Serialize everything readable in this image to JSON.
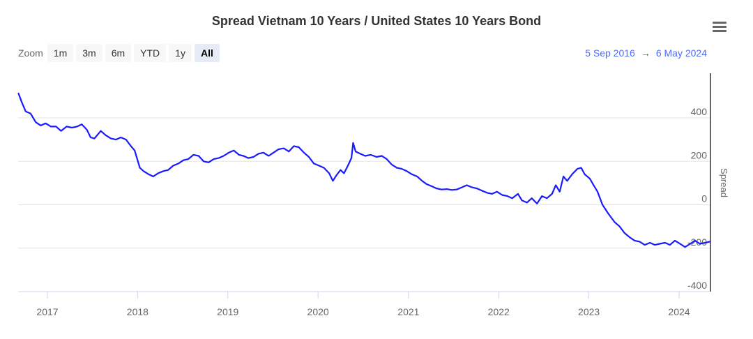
{
  "header": {
    "title": "Spread Vietnam 10 Years / United States 10 Years Bond",
    "menu_icon": "hamburger-menu-icon"
  },
  "zoom": {
    "label": "Zoom",
    "buttons": [
      "1m",
      "3m",
      "6m",
      "YTD",
      "1y",
      "All"
    ],
    "selected": "All"
  },
  "range": {
    "from": "5 Sep 2016",
    "arrow": "→",
    "to": "6 May 2024"
  },
  "colors": {
    "line": "#1a1aff",
    "range_text": "#4d6bfe",
    "accent": "#e6ebf5"
  },
  "chart_data": {
    "type": "line",
    "title": "Spread Vietnam 10 Years / United States 10 Years Bond",
    "xlabel": "",
    "ylabel": "Spread",
    "ylim": [
      -400,
      500
    ],
    "yticks": [
      400,
      200,
      0,
      -200,
      -400
    ],
    "xticks": [
      "2017",
      "2018",
      "2019",
      "2020",
      "2021",
      "2022",
      "2023",
      "2024"
    ],
    "grid": true,
    "series": [
      {
        "values": [
          [
            "2016-09-05",
            515
          ],
          [
            "2016-09-20",
            470
          ],
          [
            "2016-10-05",
            430
          ],
          [
            "2016-10-25",
            420
          ],
          [
            "2016-11-15",
            380
          ],
          [
            "2016-12-05",
            365
          ],
          [
            "2016-12-25",
            375
          ],
          [
            "2017-01-15",
            360
          ],
          [
            "2017-02-05",
            360
          ],
          [
            "2017-02-25",
            340
          ],
          [
            "2017-03-20",
            360
          ],
          [
            "2017-04-10",
            355
          ],
          [
            "2017-05-01",
            360
          ],
          [
            "2017-05-20",
            370
          ],
          [
            "2017-06-10",
            345
          ],
          [
            "2017-06-25",
            310
          ],
          [
            "2017-07-10",
            305
          ],
          [
            "2017-08-05",
            340
          ],
          [
            "2017-08-25",
            320
          ],
          [
            "2017-09-15",
            305
          ],
          [
            "2017-10-05",
            300
          ],
          [
            "2017-10-25",
            310
          ],
          [
            "2017-11-15",
            300
          ],
          [
            "2017-12-05",
            270
          ],
          [
            "2017-12-20",
            250
          ],
          [
            "2018-01-10",
            170
          ],
          [
            "2018-01-25",
            155
          ],
          [
            "2018-02-15",
            140
          ],
          [
            "2018-03-05",
            130
          ],
          [
            "2018-03-25",
            145
          ],
          [
            "2018-04-15",
            155
          ],
          [
            "2018-05-05",
            160
          ],
          [
            "2018-05-25",
            180
          ],
          [
            "2018-06-15",
            190
          ],
          [
            "2018-07-05",
            205
          ],
          [
            "2018-07-25",
            210
          ],
          [
            "2018-08-15",
            230
          ],
          [
            "2018-09-05",
            225
          ],
          [
            "2018-09-25",
            200
          ],
          [
            "2018-10-15",
            195
          ],
          [
            "2018-11-05",
            210
          ],
          [
            "2018-11-25",
            215
          ],
          [
            "2018-12-15",
            225
          ],
          [
            "2019-01-05",
            240
          ],
          [
            "2019-01-25",
            250
          ],
          [
            "2019-02-15",
            230
          ],
          [
            "2019-03-05",
            225
          ],
          [
            "2019-03-25",
            215
          ],
          [
            "2019-04-15",
            220
          ],
          [
            "2019-05-05",
            235
          ],
          [
            "2019-05-25",
            240
          ],
          [
            "2019-06-15",
            225
          ],
          [
            "2019-07-05",
            240
          ],
          [
            "2019-07-25",
            255
          ],
          [
            "2019-08-15",
            260
          ],
          [
            "2019-09-05",
            245
          ],
          [
            "2019-09-25",
            270
          ],
          [
            "2019-10-15",
            265
          ],
          [
            "2019-11-05",
            240
          ],
          [
            "2019-11-25",
            220
          ],
          [
            "2019-12-15",
            190
          ],
          [
            "2020-01-05",
            180
          ],
          [
            "2020-01-25",
            170
          ],
          [
            "2020-02-15",
            145
          ],
          [
            "2020-03-01",
            110
          ],
          [
            "2020-03-15",
            135
          ],
          [
            "2020-04-01",
            160
          ],
          [
            "2020-04-15",
            145
          ],
          [
            "2020-05-01",
            180
          ],
          [
            "2020-05-15",
            215
          ],
          [
            "2020-05-22",
            285
          ],
          [
            "2020-06-01",
            245
          ],
          [
            "2020-06-20",
            235
          ],
          [
            "2020-07-10",
            225
          ],
          [
            "2020-08-01",
            230
          ],
          [
            "2020-08-25",
            220
          ],
          [
            "2020-09-15",
            225
          ],
          [
            "2020-10-05",
            210
          ],
          [
            "2020-10-25",
            185
          ],
          [
            "2020-11-15",
            170
          ],
          [
            "2020-12-05",
            165
          ],
          [
            "2020-12-25",
            155
          ],
          [
            "2021-01-15",
            140
          ],
          [
            "2021-02-05",
            130
          ],
          [
            "2021-02-25",
            110
          ],
          [
            "2021-03-15",
            95
          ],
          [
            "2021-04-05",
            85
          ],
          [
            "2021-04-25",
            75
          ],
          [
            "2021-05-15",
            70
          ],
          [
            "2021-06-05",
            72
          ],
          [
            "2021-06-25",
            68
          ],
          [
            "2021-07-15",
            70
          ],
          [
            "2021-08-05",
            80
          ],
          [
            "2021-08-25",
            90
          ],
          [
            "2021-09-15",
            80
          ],
          [
            "2021-10-05",
            75
          ],
          [
            "2021-10-25",
            65
          ],
          [
            "2021-11-15",
            55
          ],
          [
            "2021-12-05",
            50
          ],
          [
            "2021-12-25",
            60
          ],
          [
            "2022-01-15",
            45
          ],
          [
            "2022-02-05",
            40
          ],
          [
            "2022-02-25",
            30
          ],
          [
            "2022-03-20",
            50
          ],
          [
            "2022-04-05",
            20
          ],
          [
            "2022-04-25",
            10
          ],
          [
            "2022-05-15",
            30
          ],
          [
            "2022-06-05",
            5
          ],
          [
            "2022-06-25",
            40
          ],
          [
            "2022-07-15",
            30
          ],
          [
            "2022-08-05",
            50
          ],
          [
            "2022-08-20",
            90
          ],
          [
            "2022-09-05",
            60
          ],
          [
            "2022-09-20",
            130
          ],
          [
            "2022-10-05",
            110
          ],
          [
            "2022-10-25",
            140
          ],
          [
            "2022-11-15",
            165
          ],
          [
            "2022-12-01",
            170
          ],
          [
            "2022-12-15",
            140
          ],
          [
            "2023-01-05",
            120
          ],
          [
            "2023-01-20",
            90
          ],
          [
            "2023-02-05",
            60
          ],
          [
            "2023-02-25",
            0
          ],
          [
            "2023-03-20",
            -40
          ],
          [
            "2023-04-15",
            -80
          ],
          [
            "2023-05-05",
            -100
          ],
          [
            "2023-05-25",
            -130
          ],
          [
            "2023-06-15",
            -150
          ],
          [
            "2023-07-05",
            -165
          ],
          [
            "2023-07-25",
            -170
          ],
          [
            "2023-08-15",
            -185
          ],
          [
            "2023-09-05",
            -175
          ],
          [
            "2023-09-25",
            -185
          ],
          [
            "2023-10-15",
            -180
          ],
          [
            "2023-11-05",
            -175
          ],
          [
            "2023-11-25",
            -185
          ],
          [
            "2023-12-15",
            -165
          ],
          [
            "2024-01-05",
            -180
          ],
          [
            "2024-01-25",
            -195
          ],
          [
            "2024-02-15",
            -180
          ],
          [
            "2024-03-05",
            -165
          ],
          [
            "2024-03-25",
            -180
          ],
          [
            "2024-04-15",
            -175
          ],
          [
            "2024-05-06",
            -170
          ]
        ]
      }
    ]
  }
}
